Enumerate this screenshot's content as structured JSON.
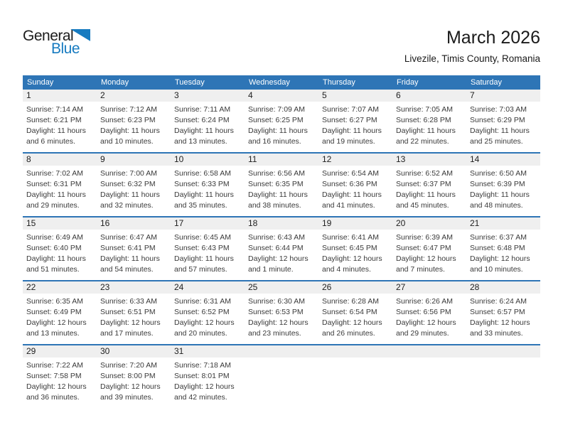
{
  "logo": {
    "part1": "General",
    "part2": "Blue"
  },
  "title": "March 2026",
  "subtitle": "Livezile, Timis County, Romania",
  "colors": {
    "header_blue": "#2E75B6",
    "logo_blue": "#177BC0",
    "row_stripe": "#EFEFEF"
  },
  "weekday_headers": [
    "Sunday",
    "Monday",
    "Tuesday",
    "Wednesday",
    "Thursday",
    "Friday",
    "Saturday"
  ],
  "weeks": [
    {
      "days": [
        {
          "number": "1",
          "sunrise": "Sunrise: 7:14 AM",
          "sunset": "Sunset: 6:21 PM",
          "daylight": "Daylight: 11 hours and 6 minutes."
        },
        {
          "number": "2",
          "sunrise": "Sunrise: 7:12 AM",
          "sunset": "Sunset: 6:23 PM",
          "daylight": "Daylight: 11 hours and 10 minutes."
        },
        {
          "number": "3",
          "sunrise": "Sunrise: 7:11 AM",
          "sunset": "Sunset: 6:24 PM",
          "daylight": "Daylight: 11 hours and 13 minutes."
        },
        {
          "number": "4",
          "sunrise": "Sunrise: 7:09 AM",
          "sunset": "Sunset: 6:25 PM",
          "daylight": "Daylight: 11 hours and 16 minutes."
        },
        {
          "number": "5",
          "sunrise": "Sunrise: 7:07 AM",
          "sunset": "Sunset: 6:27 PM",
          "daylight": "Daylight: 11 hours and 19 minutes."
        },
        {
          "number": "6",
          "sunrise": "Sunrise: 7:05 AM",
          "sunset": "Sunset: 6:28 PM",
          "daylight": "Daylight: 11 hours and 22 minutes."
        },
        {
          "number": "7",
          "sunrise": "Sunrise: 7:03 AM",
          "sunset": "Sunset: 6:29 PM",
          "daylight": "Daylight: 11 hours and 25 minutes."
        }
      ]
    },
    {
      "days": [
        {
          "number": "8",
          "sunrise": "Sunrise: 7:02 AM",
          "sunset": "Sunset: 6:31 PM",
          "daylight": "Daylight: 11 hours and 29 minutes."
        },
        {
          "number": "9",
          "sunrise": "Sunrise: 7:00 AM",
          "sunset": "Sunset: 6:32 PM",
          "daylight": "Daylight: 11 hours and 32 minutes."
        },
        {
          "number": "10",
          "sunrise": "Sunrise: 6:58 AM",
          "sunset": "Sunset: 6:33 PM",
          "daylight": "Daylight: 11 hours and 35 minutes."
        },
        {
          "number": "11",
          "sunrise": "Sunrise: 6:56 AM",
          "sunset": "Sunset: 6:35 PM",
          "daylight": "Daylight: 11 hours and 38 minutes."
        },
        {
          "number": "12",
          "sunrise": "Sunrise: 6:54 AM",
          "sunset": "Sunset: 6:36 PM",
          "daylight": "Daylight: 11 hours and 41 minutes."
        },
        {
          "number": "13",
          "sunrise": "Sunrise: 6:52 AM",
          "sunset": "Sunset: 6:37 PM",
          "daylight": "Daylight: 11 hours and 45 minutes."
        },
        {
          "number": "14",
          "sunrise": "Sunrise: 6:50 AM",
          "sunset": "Sunset: 6:39 PM",
          "daylight": "Daylight: 11 hours and 48 minutes."
        }
      ]
    },
    {
      "days": [
        {
          "number": "15",
          "sunrise": "Sunrise: 6:49 AM",
          "sunset": "Sunset: 6:40 PM",
          "daylight": "Daylight: 11 hours and 51 minutes."
        },
        {
          "number": "16",
          "sunrise": "Sunrise: 6:47 AM",
          "sunset": "Sunset: 6:41 PM",
          "daylight": "Daylight: 11 hours and 54 minutes."
        },
        {
          "number": "17",
          "sunrise": "Sunrise: 6:45 AM",
          "sunset": "Sunset: 6:43 PM",
          "daylight": "Daylight: 11 hours and 57 minutes."
        },
        {
          "number": "18",
          "sunrise": "Sunrise: 6:43 AM",
          "sunset": "Sunset: 6:44 PM",
          "daylight": "Daylight: 12 hours and 1 minute."
        },
        {
          "number": "19",
          "sunrise": "Sunrise: 6:41 AM",
          "sunset": "Sunset: 6:45 PM",
          "daylight": "Daylight: 12 hours and 4 minutes."
        },
        {
          "number": "20",
          "sunrise": "Sunrise: 6:39 AM",
          "sunset": "Sunset: 6:47 PM",
          "daylight": "Daylight: 12 hours and 7 minutes."
        },
        {
          "number": "21",
          "sunrise": "Sunrise: 6:37 AM",
          "sunset": "Sunset: 6:48 PM",
          "daylight": "Daylight: 12 hours and 10 minutes."
        }
      ]
    },
    {
      "days": [
        {
          "number": "22",
          "sunrise": "Sunrise: 6:35 AM",
          "sunset": "Sunset: 6:49 PM",
          "daylight": "Daylight: 12 hours and 13 minutes."
        },
        {
          "number": "23",
          "sunrise": "Sunrise: 6:33 AM",
          "sunset": "Sunset: 6:51 PM",
          "daylight": "Daylight: 12 hours and 17 minutes."
        },
        {
          "number": "24",
          "sunrise": "Sunrise: 6:31 AM",
          "sunset": "Sunset: 6:52 PM",
          "daylight": "Daylight: 12 hours and 20 minutes."
        },
        {
          "number": "25",
          "sunrise": "Sunrise: 6:30 AM",
          "sunset": "Sunset: 6:53 PM",
          "daylight": "Daylight: 12 hours and 23 minutes."
        },
        {
          "number": "26",
          "sunrise": "Sunrise: 6:28 AM",
          "sunset": "Sunset: 6:54 PM",
          "daylight": "Daylight: 12 hours and 26 minutes."
        },
        {
          "number": "27",
          "sunrise": "Sunrise: 6:26 AM",
          "sunset": "Sunset: 6:56 PM",
          "daylight": "Daylight: 12 hours and 29 minutes."
        },
        {
          "number": "28",
          "sunrise": "Sunrise: 6:24 AM",
          "sunset": "Sunset: 6:57 PM",
          "daylight": "Daylight: 12 hours and 33 minutes."
        }
      ]
    },
    {
      "days": [
        {
          "number": "29",
          "sunrise": "Sunrise: 7:22 AM",
          "sunset": "Sunset: 7:58 PM",
          "daylight": "Daylight: 12 hours and 36 minutes."
        },
        {
          "number": "30",
          "sunrise": "Sunrise: 7:20 AM",
          "sunset": "Sunset: 8:00 PM",
          "daylight": "Daylight: 12 hours and 39 minutes."
        },
        {
          "number": "31",
          "sunrise": "Sunrise: 7:18 AM",
          "sunset": "Sunset: 8:01 PM",
          "daylight": "Daylight: 12 hours and 42 minutes."
        },
        {
          "number": "",
          "sunrise": "",
          "sunset": "",
          "daylight": ""
        },
        {
          "number": "",
          "sunrise": "",
          "sunset": "",
          "daylight": ""
        },
        {
          "number": "",
          "sunrise": "",
          "sunset": "",
          "daylight": ""
        },
        {
          "number": "",
          "sunrise": "",
          "sunset": "",
          "daylight": ""
        }
      ]
    }
  ]
}
